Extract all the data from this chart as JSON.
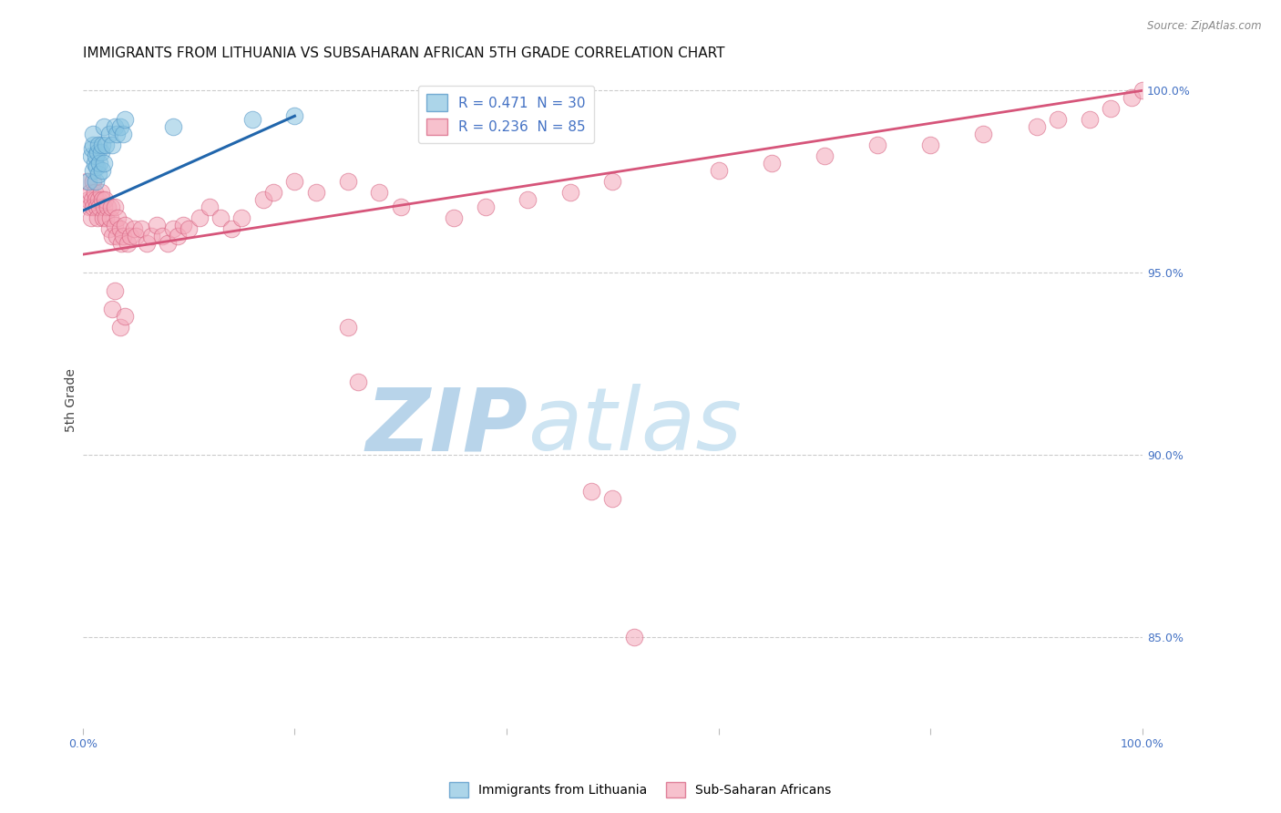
{
  "title": "IMMIGRANTS FROM LITHUANIA VS SUBSAHARAN AFRICAN 5TH GRADE CORRELATION CHART",
  "source": "Source: ZipAtlas.com",
  "ylabel": "5th Grade",
  "xlim": [
    0.0,
    1.0
  ],
  "ylim": [
    0.825,
    1.005
  ],
  "yticks": [
    0.85,
    0.9,
    0.95,
    1.0
  ],
  "ytick_labels": [
    "85.0%",
    "90.0%",
    "95.0%",
    "100.0%"
  ],
  "xticks": [
    0.0,
    0.2,
    0.4,
    0.6,
    0.8,
    1.0
  ],
  "xtick_labels": [
    "0.0%",
    "",
    "",
    "",
    "",
    "100.0%"
  ],
  "watermark_zip": "ZIP",
  "watermark_atlas": "atlas",
  "watermark_color": "#cde0f0",
  "blue_color": "#89c4e1",
  "pink_color": "#f4a7b9",
  "blue_edge_color": "#4a90c4",
  "pink_edge_color": "#d45a7a",
  "blue_line_color": "#2166ac",
  "pink_line_color": "#d6557a",
  "background_color": "#ffffff",
  "grid_color": "#cccccc",
  "tick_color": "#4472c4",
  "blue_scatter_x": [
    0.005,
    0.008,
    0.009,
    0.01,
    0.01,
    0.01,
    0.011,
    0.012,
    0.012,
    0.013,
    0.014,
    0.015,
    0.015,
    0.016,
    0.017,
    0.018,
    0.018,
    0.02,
    0.02,
    0.022,
    0.025,
    0.028,
    0.03,
    0.032,
    0.035,
    0.038,
    0.04,
    0.085,
    0.16,
    0.2
  ],
  "blue_scatter_y": [
    0.975,
    0.982,
    0.984,
    0.978,
    0.985,
    0.988,
    0.98,
    0.975,
    0.982,
    0.979,
    0.983,
    0.977,
    0.985,
    0.98,
    0.983,
    0.978,
    0.985,
    0.98,
    0.99,
    0.985,
    0.988,
    0.985,
    0.99,
    0.988,
    0.99,
    0.988,
    0.992,
    0.99,
    0.992,
    0.993
  ],
  "pink_scatter_x": [
    0.004,
    0.005,
    0.006,
    0.007,
    0.008,
    0.009,
    0.01,
    0.01,
    0.011,
    0.012,
    0.013,
    0.014,
    0.015,
    0.016,
    0.017,
    0.018,
    0.019,
    0.02,
    0.021,
    0.022,
    0.023,
    0.025,
    0.026,
    0.027,
    0.028,
    0.03,
    0.03,
    0.032,
    0.033,
    0.035,
    0.036,
    0.038,
    0.04,
    0.042,
    0.045,
    0.048,
    0.05,
    0.055,
    0.06,
    0.065,
    0.07,
    0.075,
    0.08,
    0.085,
    0.09,
    0.095,
    0.1,
    0.11,
    0.12,
    0.13,
    0.14,
    0.15,
    0.17,
    0.18,
    0.2,
    0.22,
    0.25,
    0.28,
    0.3,
    0.35,
    0.38,
    0.42,
    0.46,
    0.5,
    0.6,
    0.65,
    0.7,
    0.75,
    0.8,
    0.85,
    0.9,
    0.92,
    0.95,
    0.97,
    0.99,
    1.0,
    0.03,
    0.028,
    0.035,
    0.04,
    0.25,
    0.26,
    0.48,
    0.5,
    0.52
  ],
  "pink_scatter_y": [
    0.975,
    0.97,
    0.968,
    0.972,
    0.965,
    0.97,
    0.968,
    0.975,
    0.972,
    0.97,
    0.968,
    0.965,
    0.97,
    0.968,
    0.972,
    0.97,
    0.965,
    0.968,
    0.97,
    0.965,
    0.968,
    0.962,
    0.965,
    0.968,
    0.96,
    0.963,
    0.968,
    0.96,
    0.965,
    0.962,
    0.958,
    0.96,
    0.963,
    0.958,
    0.96,
    0.962,
    0.96,
    0.962,
    0.958,
    0.96,
    0.963,
    0.96,
    0.958,
    0.962,
    0.96,
    0.963,
    0.962,
    0.965,
    0.968,
    0.965,
    0.962,
    0.965,
    0.97,
    0.972,
    0.975,
    0.972,
    0.975,
    0.972,
    0.968,
    0.965,
    0.968,
    0.97,
    0.972,
    0.975,
    0.978,
    0.98,
    0.982,
    0.985,
    0.985,
    0.988,
    0.99,
    0.992,
    0.992,
    0.995,
    0.998,
    1.0,
    0.945,
    0.94,
    0.935,
    0.938,
    0.935,
    0.92,
    0.89,
    0.888,
    0.85
  ],
  "blue_trend_x": [
    0.0,
    0.2
  ],
  "blue_trend_y": [
    0.967,
    0.993
  ],
  "pink_trend_x": [
    0.0,
    1.0
  ],
  "pink_trend_y": [
    0.955,
    1.0
  ],
  "title_fontsize": 11,
  "source_fontsize": 8.5
}
